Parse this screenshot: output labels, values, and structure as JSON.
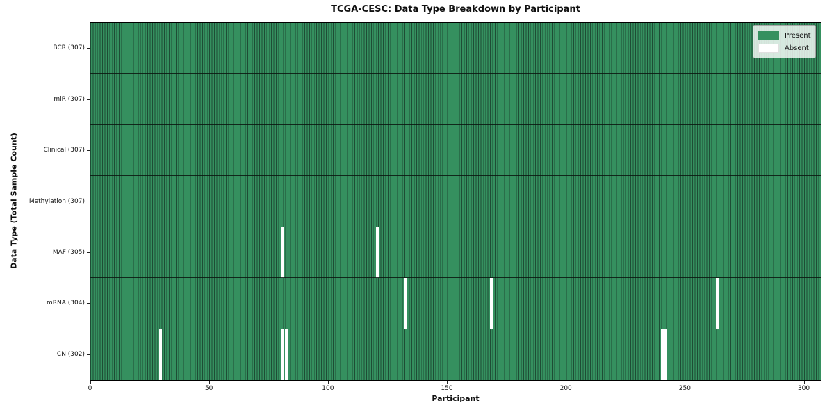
{
  "title": "TCGA-CESC: Data Type Breakdown by Participant",
  "axes": {
    "xlabel": "Participant",
    "ylabel": "Data Type (Total Sample Count)"
  },
  "legend": {
    "present_label": "Present",
    "absent_label": "Absent"
  },
  "colors": {
    "present_fill": "#35905f",
    "present_edge": "#1e4d35",
    "absent_fill": "#ffffff",
    "plot_border": "#000000"
  },
  "chart_data": {
    "type": "heatmap",
    "title": "TCGA-CESC: Data Type Breakdown by Participant",
    "xlabel": "Participant",
    "ylabel": "Data Type (Total Sample Count)",
    "legend": [
      "Present",
      "Absent"
    ],
    "legend_position": "upper right",
    "x_ticks": [
      0,
      50,
      100,
      150,
      200,
      250,
      300
    ],
    "x_range": [
      0,
      307
    ],
    "n_participants": 307,
    "grid": false,
    "rows": [
      {
        "label": "BCR (307)",
        "data_type": "BCR",
        "present_count": 307,
        "absent_participants": []
      },
      {
        "label": "miR (307)",
        "data_type": "miR",
        "present_count": 307,
        "absent_participants": []
      },
      {
        "label": "Clinical (307)",
        "data_type": "Clinical",
        "present_count": 307,
        "absent_participants": []
      },
      {
        "label": "Methylation (307)",
        "data_type": "Methylation",
        "present_count": 307,
        "absent_participants": []
      },
      {
        "label": "MAF (305)",
        "data_type": "MAF",
        "present_count": 305,
        "absent_participants": [
          80,
          120
        ]
      },
      {
        "label": "mRNA (304)",
        "data_type": "mRNA",
        "present_count": 304,
        "absent_participants": [
          132,
          168,
          263
        ]
      },
      {
        "label": "CN (302)",
        "data_type": "CN",
        "present_count": 302,
        "absent_participants": [
          29,
          80,
          82,
          240,
          241
        ]
      }
    ]
  }
}
